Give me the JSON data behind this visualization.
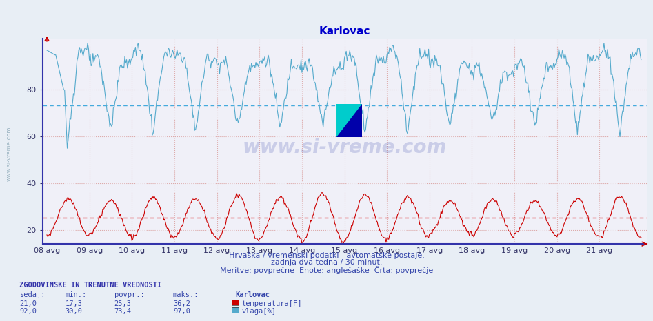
{
  "title": "Karlovac",
  "title_color": "#0000cc",
  "bg_color": "#e8e8e8",
  "plot_bg_color": "#f0f0f0",
  "x_label_dates": [
    "08 avg",
    "09 avg",
    "10 avg",
    "11 avg",
    "12 avg",
    "13 avg",
    "14 avg",
    "15 avg",
    "16 avg",
    "17 avg",
    "18 avg",
    "19 avg",
    "20 avg",
    "21 avg"
  ],
  "y_ticks": [
    20,
    40,
    60,
    80
  ],
  "y_min": 14,
  "y_max": 102,
  "temp_avg": 25.3,
  "hum_avg": 73.4,
  "temp_color": "#cc0000",
  "hum_color": "#55aacc",
  "avg_line_color_temp": "#dd3333",
  "avg_line_color_hum": "#44aadd",
  "hgrid_color": "#ddaaaa",
  "vline_color": "#ddaaaa",
  "subtitle1": "Hrvaška / vremenski podatki - avtomatske postaje.",
  "subtitle2": "zadnja dva tedna / 30 minut.",
  "subtitle3": "Meritve: povprečne  Enote: anglešaške  Črta: povprečje",
  "footer_title": "ZGODOVINSKE IN TRENUTNE VREDNOSTI",
  "footer_cols": [
    "sedaj:",
    "min.:",
    "povpr.:",
    "maks.:"
  ],
  "footer_temp": [
    "21,0",
    "17,3",
    "25,3",
    "36,2"
  ],
  "footer_hum": [
    "92,0",
    "30,0",
    "73,4",
    "97,0"
  ],
  "footer_label_temp": "temperatura[F]",
  "footer_label_hum": "vlaga[%]",
  "footer_station": "Karlovac",
  "num_days": 14,
  "points_per_day": 48,
  "watermark": "www.si-vreme.com"
}
